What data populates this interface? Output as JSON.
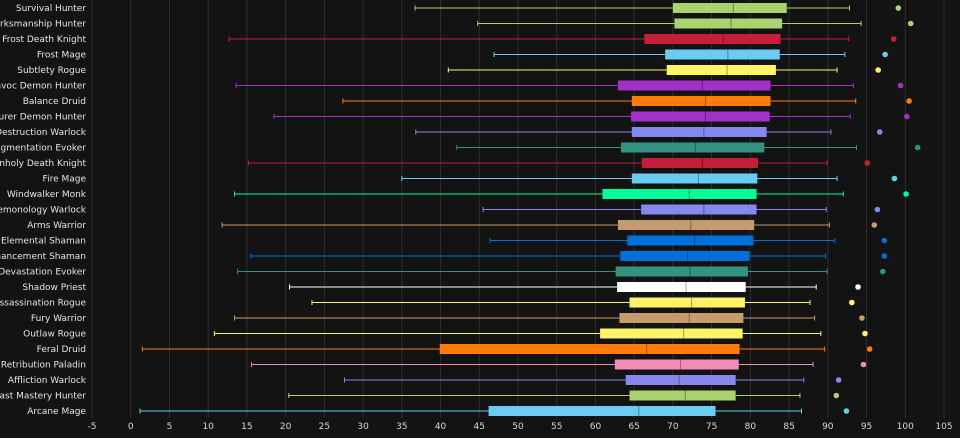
{
  "chart_data": {
    "type": "box",
    "orientation": "horizontal",
    "xlim": [
      -5,
      105
    ],
    "xticks": [
      -5,
      0,
      5,
      10,
      15,
      20,
      25,
      30,
      35,
      40,
      45,
      50,
      55,
      60,
      65,
      70,
      75,
      80,
      85,
      90,
      95,
      100,
      105
    ],
    "grid": true,
    "series": [
      {
        "name": "Survival Hunter",
        "min": 36.7,
        "q1": 70.0,
        "median": 77.8,
        "q3": 84.7,
        "max": 92.8,
        "point": 99.1,
        "color": "#a9d271"
      },
      {
        "name": "Marksmanship Hunter",
        "min": 44.8,
        "q1": 70.2,
        "median": 77.5,
        "q3": 84.1,
        "max": 94.3,
        "point": 100.7,
        "color": "#a9d271"
      },
      {
        "name": "Frost Death Knight",
        "min": 12.7,
        "q1": 66.3,
        "median": 76.5,
        "q3": 83.9,
        "max": 92.7,
        "point": 98.5,
        "color": "#c41e3a"
      },
      {
        "name": "Frost Mage",
        "min": 46.9,
        "q1": 69.0,
        "median": 77.1,
        "q3": 83.8,
        "max": 92.2,
        "point": 97.4,
        "color": "#69ccf0"
      },
      {
        "name": "Subtlety Rogue",
        "min": 41.0,
        "q1": 69.2,
        "median": 77.0,
        "q3": 83.3,
        "max": 91.2,
        "point": 96.5,
        "color": "#fff468"
      },
      {
        "name": "Havoc Demon Hunter",
        "min": 13.6,
        "q1": 62.9,
        "median": 73.8,
        "q3": 82.6,
        "max": 93.3,
        "point": 99.4,
        "color": "#a330c9"
      },
      {
        "name": "Balance Druid",
        "min": 27.4,
        "q1": 64.7,
        "median": 74.2,
        "q3": 82.6,
        "max": 93.6,
        "point": 100.5,
        "color": "#ff7c0a"
      },
      {
        "name": "Devourer Demon Hunter",
        "min": 18.5,
        "q1": 64.6,
        "median": 74.2,
        "q3": 82.5,
        "max": 92.9,
        "point": 100.2,
        "color": "#a330c9"
      },
      {
        "name": "Destruction Warlock",
        "min": 36.8,
        "q1": 64.7,
        "median": 74.0,
        "q3": 82.1,
        "max": 90.4,
        "point": 96.7,
        "color": "#8788ee"
      },
      {
        "name": "Augmentation Evoker",
        "min": 42.1,
        "q1": 63.3,
        "median": 72.9,
        "q3": 81.8,
        "max": 93.7,
        "point": 101.6,
        "color": "#33937f"
      },
      {
        "name": "Unholy Death Knight",
        "min": 15.2,
        "q1": 66.0,
        "median": 73.8,
        "q3": 81.0,
        "max": 89.9,
        "point": 95.1,
        "color": "#c41e3a"
      },
      {
        "name": "Fire Mage",
        "min": 35.0,
        "q1": 64.7,
        "median": 73.3,
        "q3": 80.9,
        "max": 91.2,
        "point": 98.6,
        "color": "#69ccf0"
      },
      {
        "name": "Windwalker Monk",
        "min": 13.4,
        "q1": 60.9,
        "median": 72.1,
        "q3": 80.8,
        "max": 92.0,
        "point": 100.1,
        "color": "#00ff98"
      },
      {
        "name": "Demonology Warlock",
        "min": 45.5,
        "q1": 65.9,
        "median": 74.0,
        "q3": 80.8,
        "max": 89.8,
        "point": 96.4,
        "color": "#8788ee"
      },
      {
        "name": "Arms Warrior",
        "min": 11.8,
        "q1": 62.9,
        "median": 72.3,
        "q3": 80.5,
        "max": 90.2,
        "point": 96.0,
        "color": "#c69b6d"
      },
      {
        "name": "Elemental Shaman",
        "min": 46.4,
        "q1": 64.1,
        "median": 72.8,
        "q3": 80.4,
        "max": 90.9,
        "point": 97.3,
        "color": "#0070dd"
      },
      {
        "name": "Enhancement Shaman",
        "min": 15.5,
        "q1": 63.2,
        "median": 71.9,
        "q3": 79.9,
        "max": 89.7,
        "point": 97.3,
        "color": "#0070dd"
      },
      {
        "name": "Devastation Evoker",
        "min": 13.8,
        "q1": 62.6,
        "median": 72.2,
        "q3": 79.7,
        "max": 89.9,
        "point": 97.1,
        "color": "#33937f"
      },
      {
        "name": "Shadow Priest",
        "min": 20.5,
        "q1": 62.8,
        "median": 71.7,
        "q3": 79.4,
        "max": 88.5,
        "point": 93.9,
        "color": "#ffffff"
      },
      {
        "name": "Assassination Rogue",
        "min": 23.4,
        "q1": 64.4,
        "median": 72.4,
        "q3": 79.3,
        "max": 87.7,
        "point": 93.1,
        "color": "#fff468"
      },
      {
        "name": "Fury Warrior",
        "min": 13.4,
        "q1": 63.1,
        "median": 72.1,
        "q3": 79.1,
        "max": 88.3,
        "point": 94.4,
        "color": "#c69b6d"
      },
      {
        "name": "Outlaw Rogue",
        "min": 10.8,
        "q1": 60.6,
        "median": 71.4,
        "q3": 79.0,
        "max": 89.1,
        "point": 94.8,
        "color": "#fff468"
      },
      {
        "name": "Feral Druid",
        "min": 1.5,
        "q1": 39.9,
        "median": 66.6,
        "q3": 78.6,
        "max": 89.6,
        "point": 95.4,
        "color": "#ff7c0a"
      },
      {
        "name": "Retribution Paladin",
        "min": 15.6,
        "q1": 62.5,
        "median": 71.0,
        "q3": 78.5,
        "max": 88.1,
        "point": 94.6,
        "color": "#f48cba"
      },
      {
        "name": "Affliction Warlock",
        "min": 27.6,
        "q1": 63.9,
        "median": 70.8,
        "q3": 78.1,
        "max": 86.9,
        "point": 91.4,
        "color": "#8788ee"
      },
      {
        "name": "Beast Mastery Hunter",
        "min": 20.4,
        "q1": 64.4,
        "median": 71.6,
        "q3": 78.1,
        "max": 86.4,
        "point": 91.1,
        "color": "#a9d271"
      },
      {
        "name": "Arcane Mage",
        "min": 1.2,
        "q1": 46.2,
        "median": 65.6,
        "q3": 75.5,
        "max": 86.6,
        "point": 92.4,
        "color": "#69ccf0"
      }
    ]
  }
}
